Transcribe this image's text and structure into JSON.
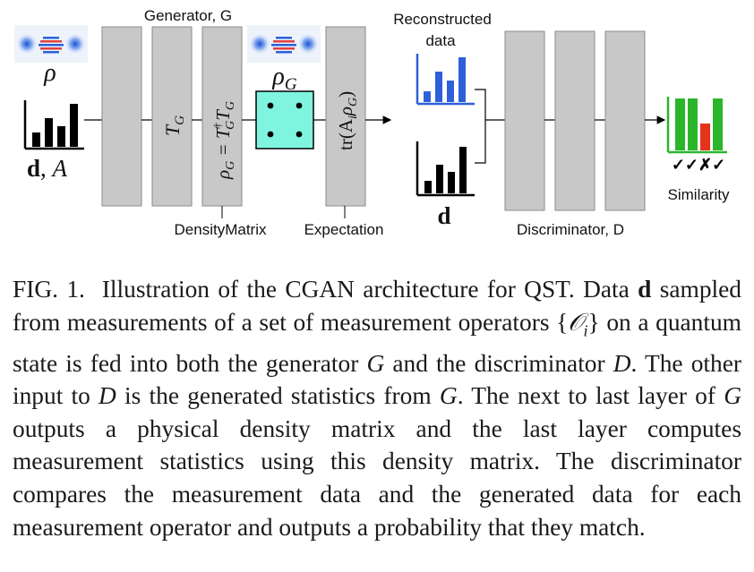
{
  "figure": {
    "generator_label": "Generator, G",
    "reconstructed_label_line1": "Reconstructed",
    "reconstructed_label_line2": "data",
    "rho_label": "ρ",
    "rho_g_label": "ρ",
    "rho_g_sub": "G",
    "d_bold": "d",
    "d_A_sep": ", ",
    "A_label": "A",
    "layer_tg": "T",
    "layer_tg_sub": "G",
    "layer_density_lhs": "ρ",
    "layer_density_lhs_sub": "G",
    "layer_density_eq": " = T",
    "layer_density_dagger": "†",
    "layer_density_sub1": "G",
    "layer_density_t2": "T",
    "layer_density_sub2": "G",
    "layer_trace": "tr(A",
    "layer_trace_sub": "i",
    "layer_trace_rest": "ρ",
    "layer_trace_sub2": "G",
    "layer_trace_close": ")",
    "density_matrix_label": "DensityMatrix",
    "expectation_label": "Expectation",
    "discriminator_label": "Discriminator, D",
    "similarity_label": "Similarity",
    "marks": "✓✓✗✓",
    "colors": {
      "layer_fill": "#c8c8c8",
      "density_box": "#7ff5e0",
      "blue_bar": "#2f5fd8",
      "green_bar": "#2bb52b",
      "red_bar": "#e53219"
    }
  },
  "caption": {
    "label": "FIG. 1.",
    "text_1": "Illustration of the CGAN architecture for QST. Data ",
    "bold_d": "d",
    "text_2": " sampled from measurements of a set of measurement operators {",
    "op": "𝒪",
    "op_sub": "i",
    "text_3": "} on a quantum state is fed into both the generator ",
    "G1": "G",
    "text_4": " and the discriminator ",
    "D1": "D",
    "text_5": ". The other input to ",
    "D2": "D",
    "text_6": " is the generated statistics from ",
    "G2": "G",
    "text_7": ". The next to last layer of ",
    "G3": "G",
    "text_8": " outputs a physical density matrix and the last layer computes measurement statistics using this density matrix. The discriminator compares the measurement data and the generated data for each measurement operator and outputs a probability that they match."
  }
}
